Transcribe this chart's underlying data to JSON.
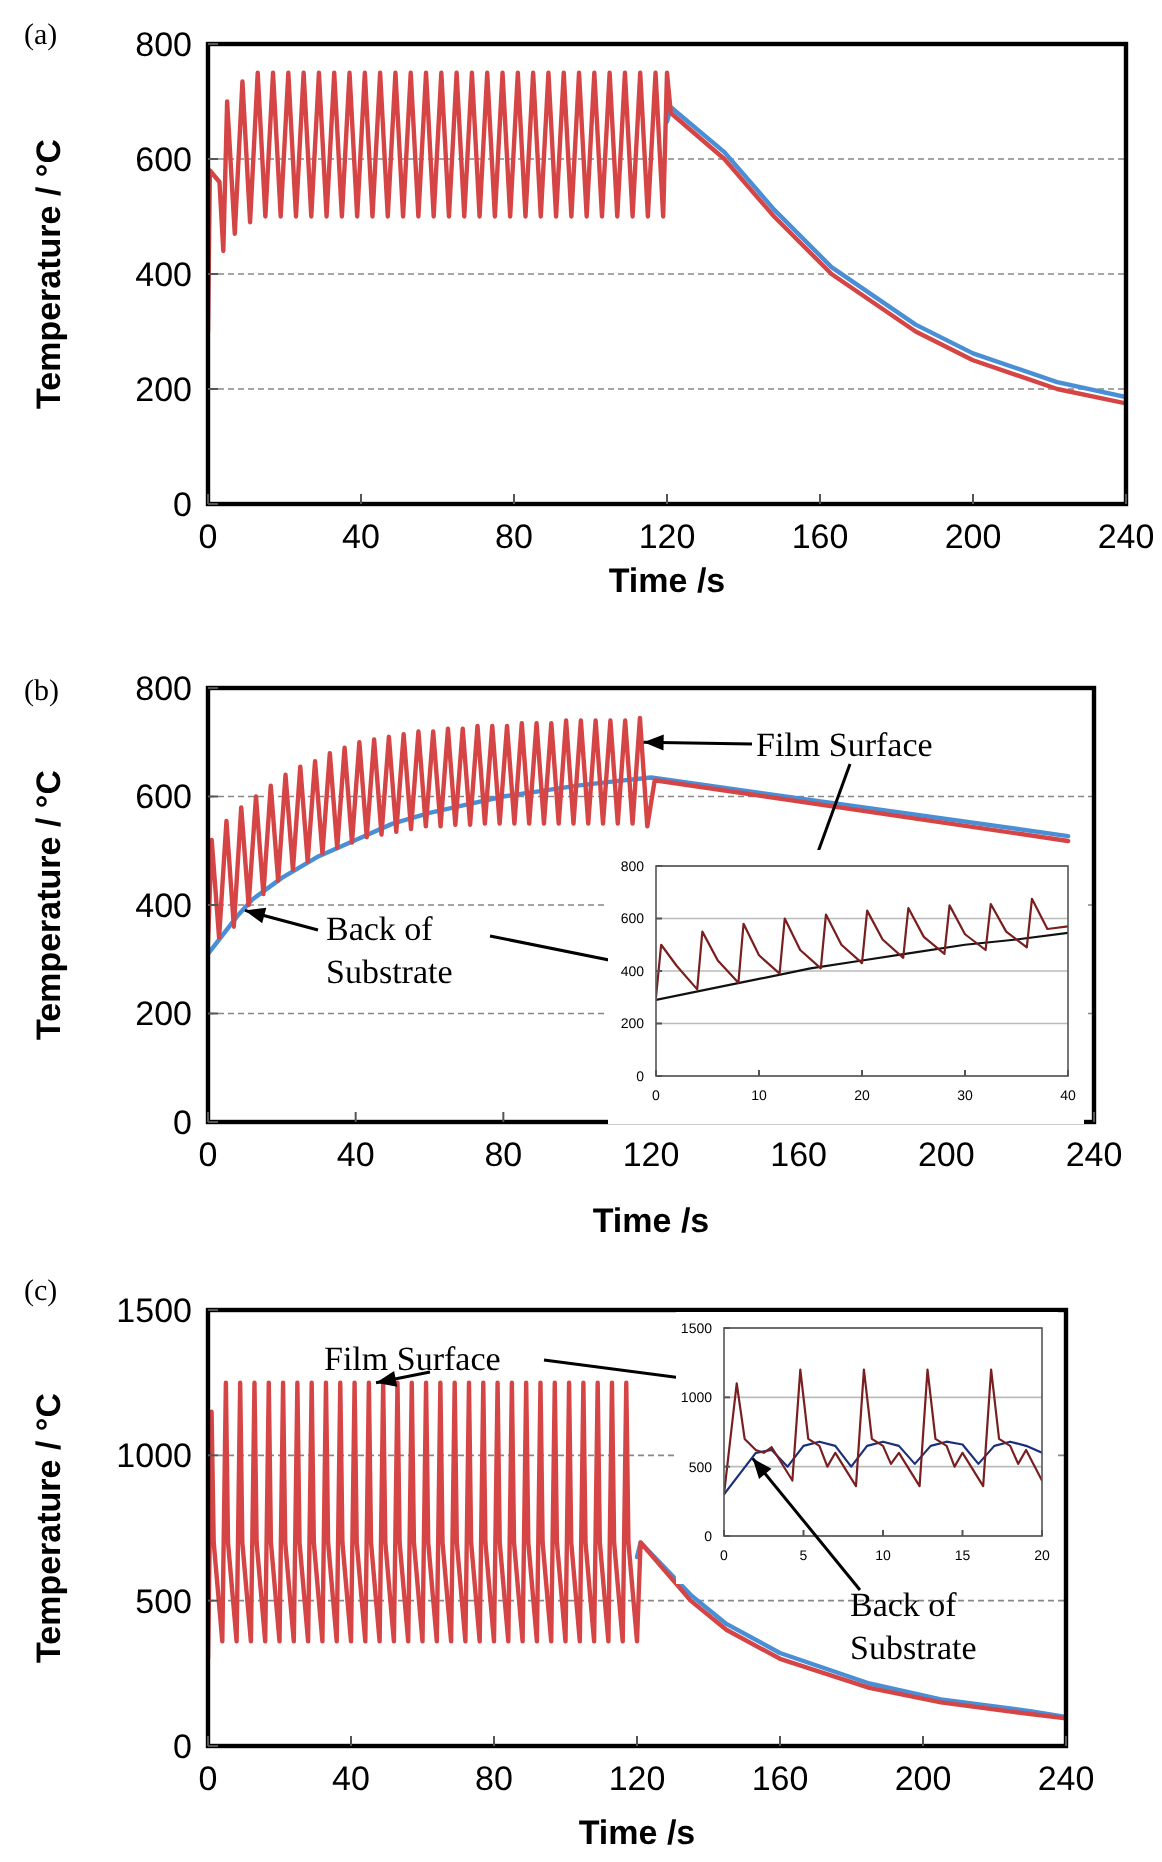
{
  "chart_data": [
    {
      "type": "line",
      "title": "(a)",
      "xlabel": "Time /s",
      "ylabel": "Temperature / °C",
      "xlim": [
        0,
        240
      ],
      "ylim": [
        0,
        800
      ],
      "xticks": [
        0,
        40,
        80,
        120,
        160,
        200,
        240
      ],
      "yticks": [
        0,
        200,
        400,
        600,
        800
      ],
      "grid": "y",
      "series": [
        {
          "color": "#4a8fd6",
          "x": [
            120,
            121,
            135,
            148,
            163,
            185,
            200,
            222,
            240
          ],
          "values": [
            665,
            690,
            612,
            512,
            412,
            312,
            262,
            212,
            186
          ]
        },
        {
          "color": "#d64545",
          "x": [
            0,
            0.5,
            3,
            4,
            5,
            7,
            9,
            11,
            13,
            15,
            17,
            19,
            21,
            23,
            25,
            27,
            29,
            31,
            33,
            35,
            37,
            39,
            41,
            43,
            45,
            47,
            49,
            51,
            53,
            55,
            57,
            59,
            61,
            63,
            65,
            67,
            69,
            71,
            73,
            75,
            77,
            79,
            81,
            83,
            85,
            87,
            89,
            91,
            93,
            95,
            97,
            99,
            101,
            103,
            105,
            107,
            109,
            111,
            113,
            115,
            117,
            119,
            120,
            121,
            135,
            148,
            163,
            185,
            200,
            222,
            240
          ],
          "values": [
            300,
            580,
            560,
            440,
            700,
            470,
            735,
            490,
            750,
            500,
            750,
            500,
            750,
            500,
            750,
            500,
            750,
            500,
            750,
            500,
            750,
            500,
            750,
            500,
            750,
            500,
            750,
            500,
            750,
            500,
            750,
            500,
            750,
            500,
            750,
            500,
            750,
            500,
            750,
            500,
            750,
            500,
            750,
            500,
            750,
            500,
            750,
            500,
            750,
            500,
            750,
            500,
            750,
            500,
            750,
            500,
            750,
            500,
            750,
            500,
            750,
            500,
            750,
            680,
            600,
            500,
            400,
            300,
            250,
            200,
            175
          ]
        }
      ]
    },
    {
      "type": "line",
      "title": "(b)",
      "xlabel": "Time /s",
      "ylabel": "Temperature / °C",
      "xlim": [
        0,
        240
      ],
      "ylim": [
        0,
        800
      ],
      "xticks": [
        0,
        40,
        80,
        120,
        160,
        200,
        240
      ],
      "yticks": [
        0,
        200,
        400,
        600,
        800
      ],
      "grid": "y",
      "annotations": [
        {
          "text": "Film Surface",
          "x": 118,
          "y": 700
        },
        {
          "text": "Back of Substrate",
          "x": 10,
          "y": 390
        }
      ],
      "series": [
        {
          "color": "#4a8fd6",
          "x": [
            0,
            4,
            8,
            12,
            20,
            30,
            40,
            50,
            60,
            70,
            80,
            90,
            100,
            110,
            120,
            233
          ],
          "values": [
            310,
            345,
            380,
            410,
            450,
            490,
            520,
            550,
            570,
            585,
            600,
            610,
            620,
            628,
            635,
            527
          ]
        },
        {
          "color": "#d64545",
          "x": [
            0,
            1,
            3,
            5,
            7,
            9,
            11,
            13,
            15,
            17,
            19,
            21,
            23,
            25,
            27,
            29,
            31,
            33,
            35,
            37,
            39,
            41,
            43,
            45,
            47,
            49,
            51,
            53,
            55,
            57,
            59,
            61,
            63,
            65,
            67,
            69,
            71,
            73,
            75,
            77,
            79,
            81,
            83,
            85,
            87,
            89,
            91,
            93,
            95,
            97,
            99,
            101,
            103,
            105,
            107,
            109,
            111,
            113,
            115,
            117,
            119,
            121,
            233
          ],
          "values": [
            330,
            520,
            340,
            555,
            360,
            580,
            400,
            600,
            420,
            620,
            445,
            640,
            465,
            655,
            480,
            665,
            495,
            680,
            505,
            690,
            515,
            700,
            525,
            705,
            530,
            710,
            535,
            715,
            540,
            720,
            545,
            720,
            545,
            725,
            548,
            725,
            548,
            730,
            550,
            730,
            550,
            730,
            550,
            735,
            550,
            735,
            550,
            735,
            550,
            740,
            550,
            740,
            550,
            740,
            550,
            740,
            550,
            740,
            550,
            745,
            545,
            630,
            518
          ]
        }
      ]
    },
    {
      "type": "line",
      "xlim": [
        0,
        40
      ],
      "ylim": [
        0,
        800
      ],
      "xticks": [
        0,
        10,
        20,
        30,
        40
      ],
      "yticks": [
        0,
        200,
        400,
        600,
        800
      ],
      "grid": "y",
      "series": [
        {
          "color": "#111111",
          "x": [
            0,
            5,
            10,
            15,
            20,
            25,
            30,
            35,
            40
          ],
          "values": [
            290,
            330,
            370,
            410,
            440,
            470,
            500,
            520,
            545
          ]
        },
        {
          "color": "#7a1f1f",
          "x": [
            0,
            0.5,
            2,
            4,
            4.5,
            6,
            8,
            8.5,
            10,
            12,
            12.5,
            14,
            16,
            16.5,
            18,
            20,
            20.5,
            22,
            24,
            24.5,
            26,
            28,
            28.5,
            30,
            32,
            32.5,
            34,
            36,
            36.5,
            38,
            40
          ],
          "values": [
            300,
            500,
            420,
            330,
            550,
            440,
            355,
            580,
            460,
            390,
            600,
            480,
            410,
            615,
            500,
            430,
            630,
            520,
            450,
            640,
            530,
            465,
            650,
            540,
            480,
            655,
            550,
            490,
            675,
            560,
            570
          ]
        }
      ]
    },
    {
      "type": "line",
      "title": "(c)",
      "xlabel": "Time /s",
      "ylabel": "Temperature / °C",
      "xlim": [
        0,
        240
      ],
      "ylim": [
        0,
        1500
      ],
      "xticks": [
        0,
        40,
        80,
        120,
        160,
        200,
        240
      ],
      "yticks": [
        0,
        500,
        1000,
        1500
      ],
      "grid": "y",
      "annotations": [
        {
          "text": "Film Surface",
          "x": 47,
          "y": 1250
        }
      ],
      "series": [
        {
          "color": "#4a8fd6",
          "x": [
            120,
            121,
            135,
            145,
            160,
            185,
            205,
            230,
            240
          ],
          "values": [
            650,
            700,
            520,
            420,
            320,
            215,
            160,
            120,
            100
          ]
        },
        {
          "color": "#d64545",
          "x": [
            0,
            1,
            1.6,
            4,
            5,
            5.6,
            8,
            9,
            9.6,
            12,
            13,
            13.6,
            16,
            17,
            17.6,
            20,
            21,
            21.6,
            24,
            25,
            25.6,
            28,
            29,
            29.6,
            32,
            33,
            33.6,
            36,
            37,
            37.6,
            40,
            41,
            41.6,
            44,
            45,
            45.6,
            48,
            49,
            49.6,
            52,
            53,
            53.6,
            56,
            57,
            57.6,
            60,
            61,
            61.6,
            64,
            65,
            65.6,
            68,
            69,
            69.6,
            72,
            73,
            73.6,
            76,
            77,
            77.6,
            80,
            81,
            81.6,
            84,
            85,
            85.6,
            88,
            89,
            89.6,
            92,
            93,
            93.6,
            96,
            97,
            97.6,
            100,
            101,
            101.6,
            104,
            105,
            105.6,
            108,
            109,
            109.6,
            112,
            113,
            113.6,
            116,
            117,
            117.6,
            120,
            121,
            135,
            145,
            160,
            185,
            205,
            230,
            240
          ],
          "values": [
            300,
            1150,
            700,
            360,
            1250,
            700,
            360,
            1250,
            700,
            360,
            1250,
            700,
            360,
            1250,
            700,
            360,
            1250,
            700,
            360,
            1250,
            700,
            360,
            1250,
            700,
            360,
            1250,
            700,
            360,
            1250,
            700,
            360,
            1250,
            700,
            360,
            1250,
            700,
            360,
            1250,
            700,
            360,
            1250,
            700,
            360,
            1250,
            700,
            360,
            1250,
            700,
            360,
            1250,
            700,
            360,
            1250,
            700,
            360,
            1250,
            700,
            360,
            1250,
            700,
            360,
            1250,
            700,
            360,
            1250,
            700,
            360,
            1250,
            700,
            360,
            1250,
            700,
            360,
            1250,
            700,
            360,
            1250,
            700,
            360,
            1250,
            700,
            360,
            1250,
            700,
            360,
            1250,
            700,
            360,
            1250,
            700,
            360,
            700,
            500,
            400,
            300,
            200,
            150,
            110,
            95
          ]
        }
      ]
    },
    {
      "type": "line",
      "xlim": [
        0,
        20
      ],
      "ylim": [
        0,
        1500
      ],
      "xticks": [
        0,
        5,
        10,
        15,
        20
      ],
      "yticks": [
        0,
        500,
        1000,
        1500
      ],
      "grid": "y",
      "annotations": [
        {
          "text": "Back of Substrate",
          "x": 1.8,
          "y": 560
        }
      ],
      "series": [
        {
          "color": "#1c2f7a",
          "x": [
            0,
            1,
            2,
            3,
            4,
            5,
            6,
            7,
            8,
            9,
            10,
            11,
            12,
            13,
            14,
            15,
            16,
            17,
            18,
            19,
            20
          ],
          "values": [
            300,
            450,
            600,
            620,
            500,
            650,
            680,
            650,
            500,
            650,
            680,
            650,
            520,
            650,
            680,
            660,
            520,
            650,
            680,
            650,
            600
          ]
        },
        {
          "color": "#7a1f1f",
          "x": [
            0,
            0.8,
            1.3,
            2,
            2.5,
            3,
            4.3,
            4.8,
            5.3,
            6,
            6.5,
            7,
            8.3,
            8.8,
            9.3,
            10,
            10.5,
            11,
            12.3,
            12.8,
            13.3,
            14,
            14.5,
            15,
            16.3,
            16.8,
            17.3,
            18,
            18.5,
            19,
            20
          ],
          "values": [
            300,
            1100,
            700,
            620,
            600,
            640,
            400,
            1200,
            700,
            650,
            500,
            600,
            360,
            1200,
            700,
            650,
            520,
            600,
            360,
            1200,
            700,
            650,
            500,
            600,
            360,
            1200,
            700,
            650,
            520,
            620,
            400
          ]
        }
      ]
    }
  ]
}
